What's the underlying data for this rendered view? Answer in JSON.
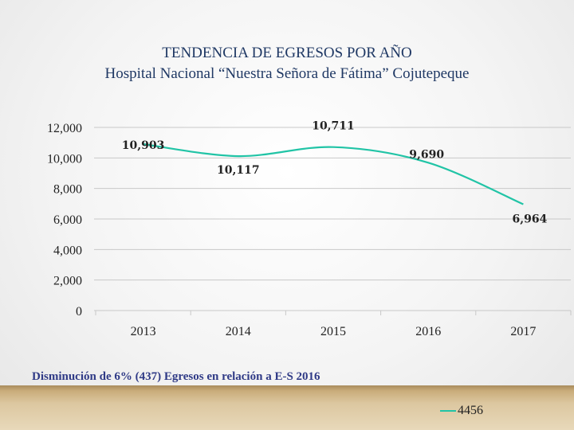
{
  "chart_data": {
    "type": "line",
    "title": "TENDENCIA DE EGRESOS POR AÑO",
    "subtitle": "Hospital Nacional “Nuestra Señora de Fátima” Cojutepeque",
    "categories": [
      "2013",
      "2014",
      "2015",
      "2016",
      "2017"
    ],
    "series": [
      {
        "name": "4456",
        "values": [
          10903,
          10117,
          10711,
          9690,
          6964
        ],
        "labels": [
          "10,903",
          "10,117",
          "10,711",
          "9,690",
          "6,964"
        ],
        "color": "#21c4a6"
      }
    ],
    "ylim": [
      0,
      12000
    ],
    "yticks": [
      0,
      2000,
      4000,
      6000,
      8000,
      10000,
      12000
    ],
    "ytick_labels": [
      "0",
      "2,000",
      "4,000",
      "6,000",
      "8,000",
      "10,000",
      "12,000"
    ],
    "grid": true,
    "legend_position": "bottom-right"
  },
  "note": "Disminución  de 6% (437) Egresos en relación a E-S 2016"
}
